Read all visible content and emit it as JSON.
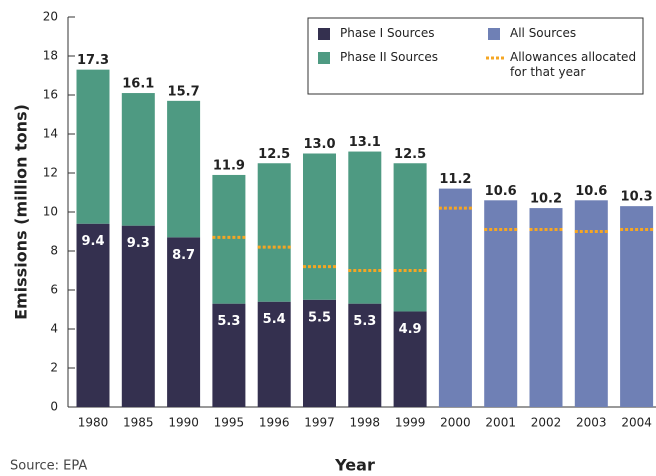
{
  "chart_data": {
    "type": "bar",
    "y_label": "Emissions (million tons)",
    "x_label": "Year",
    "source": "Source: EPA",
    "categories": [
      "1980",
      "1985",
      "1990",
      "1995",
      "1996",
      "1997",
      "1998",
      "1999",
      "2000",
      "2001",
      "2002",
      "2003",
      "2004"
    ],
    "series": [
      {
        "name": "Phase I Sources",
        "color": "#34304f",
        "values": [
          9.4,
          9.3,
          8.7,
          5.3,
          5.4,
          5.5,
          5.3,
          4.9,
          null,
          null,
          null,
          null,
          null
        ],
        "value_labels": [
          "9.4",
          "9.3",
          "8.7",
          "5.3",
          "5.4",
          "5.5",
          "5.3",
          "4.9",
          null,
          null,
          null,
          null,
          null
        ]
      },
      {
        "name": "Phase II Sources",
        "color": "#4e9a82",
        "values": [
          7.9,
          6.8,
          7.0,
          6.6,
          7.1,
          7.5,
          7.8,
          7.6,
          null,
          null,
          null,
          null,
          null
        ]
      },
      {
        "name": "All Sources",
        "color": "#6f80b5",
        "values": [
          null,
          null,
          null,
          null,
          null,
          null,
          null,
          null,
          11.2,
          10.6,
          10.2,
          10.6,
          10.3
        ],
        "value_labels": [
          null,
          null,
          null,
          null,
          null,
          null,
          null,
          null,
          "11.2",
          "10.6",
          "10.2",
          "10.6",
          "10.3"
        ]
      },
      {
        "name": "Allowances allocated for that year",
        "type": "line",
        "color": "#f5a623",
        "values": [
          null,
          null,
          null,
          8.7,
          8.2,
          7.2,
          7.0,
          7.0,
          10.2,
          9.1,
          9.1,
          9.0,
          9.1
        ]
      }
    ],
    "totals": [
      17.3,
      16.1,
      15.7,
      11.9,
      12.5,
      13.0,
      13.1,
      12.5,
      null,
      null,
      null,
      null,
      null
    ],
    "total_labels": [
      "17.3",
      "16.1",
      "15.7",
      "11.9",
      "12.5",
      "13.0",
      "13.1",
      "12.5",
      null,
      null,
      null,
      null,
      null
    ],
    "ylim": [
      0,
      20
    ],
    "yticks": [
      0,
      2,
      4,
      6,
      8,
      10,
      12,
      14,
      16,
      18,
      20
    ],
    "grid": false
  }
}
